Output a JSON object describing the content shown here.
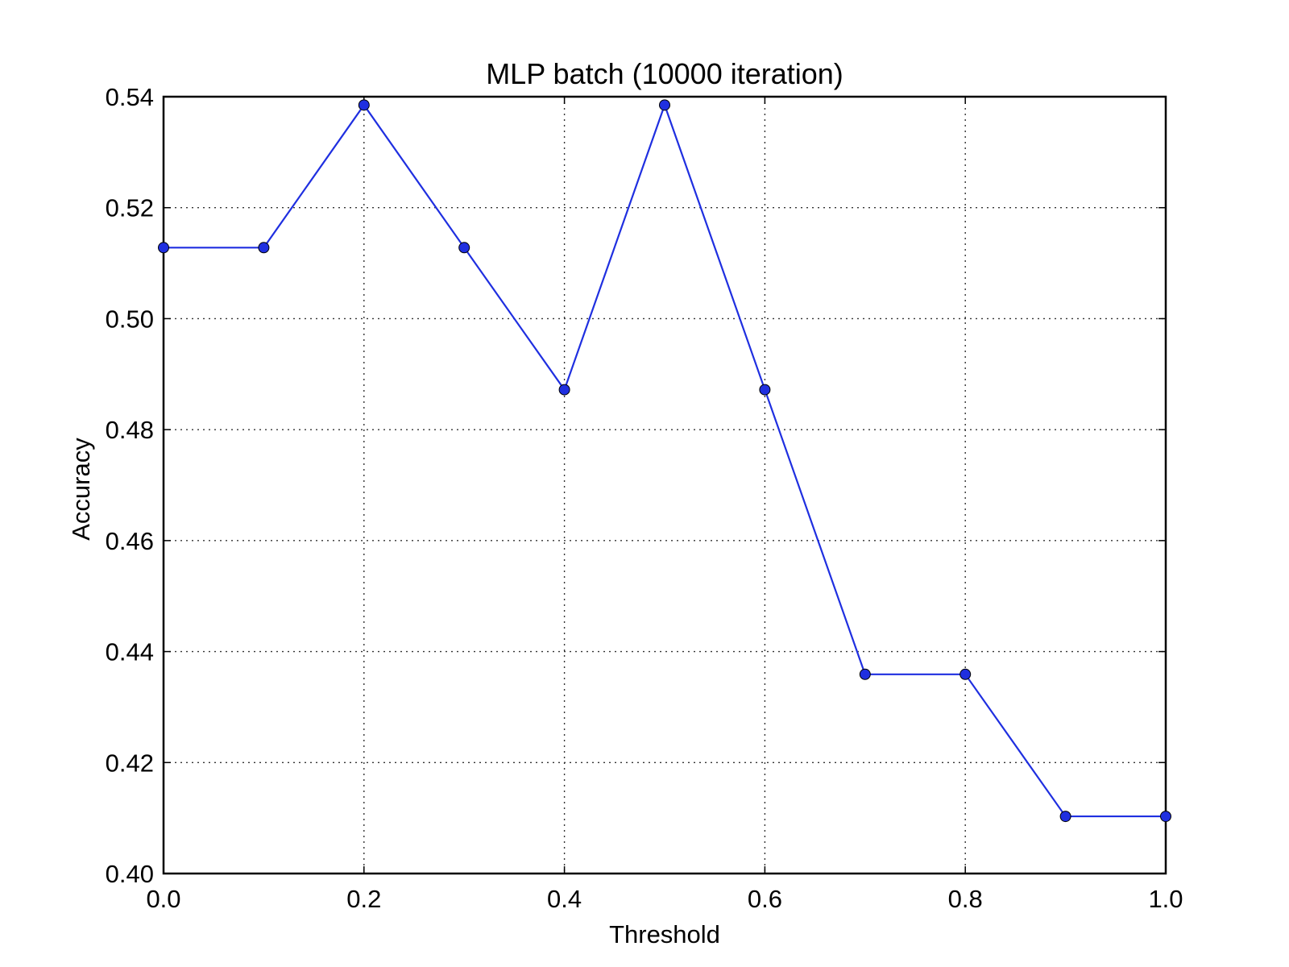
{
  "chart_data": {
    "type": "line",
    "title": "MLP batch (10000 iteration)",
    "xlabel": "Threshold",
    "ylabel": "Accuracy",
    "xlim": [
      0.0,
      1.0
    ],
    "ylim": [
      0.4,
      0.54
    ],
    "grid": true,
    "x_ticks": [
      {
        "value": 0.0,
        "label": "0.0"
      },
      {
        "value": 0.2,
        "label": "0.2"
      },
      {
        "value": 0.4,
        "label": "0.4"
      },
      {
        "value": 0.6,
        "label": "0.6"
      },
      {
        "value": 0.8,
        "label": "0.8"
      },
      {
        "value": 1.0,
        "label": "1.0"
      }
    ],
    "y_ticks": [
      {
        "value": 0.4,
        "label": "0.40"
      },
      {
        "value": 0.42,
        "label": "0.42"
      },
      {
        "value": 0.44,
        "label": "0.44"
      },
      {
        "value": 0.46,
        "label": "0.46"
      },
      {
        "value": 0.48,
        "label": "0.48"
      },
      {
        "value": 0.5,
        "label": "0.50"
      },
      {
        "value": 0.52,
        "label": "0.52"
      },
      {
        "value": 0.54,
        "label": "0.54"
      }
    ],
    "series": [
      {
        "name": "Accuracy",
        "color": "#1f2fe0",
        "marker": "circle",
        "x": [
          0.0,
          0.1,
          0.2,
          0.3,
          0.4,
          0.5,
          0.6,
          0.7,
          0.8,
          0.9,
          1.0
        ],
        "y": [
          0.5128,
          0.5128,
          0.5385,
          0.5128,
          0.4872,
          0.5385,
          0.4872,
          0.4359,
          0.4359,
          0.4103,
          0.4103
        ]
      }
    ]
  }
}
